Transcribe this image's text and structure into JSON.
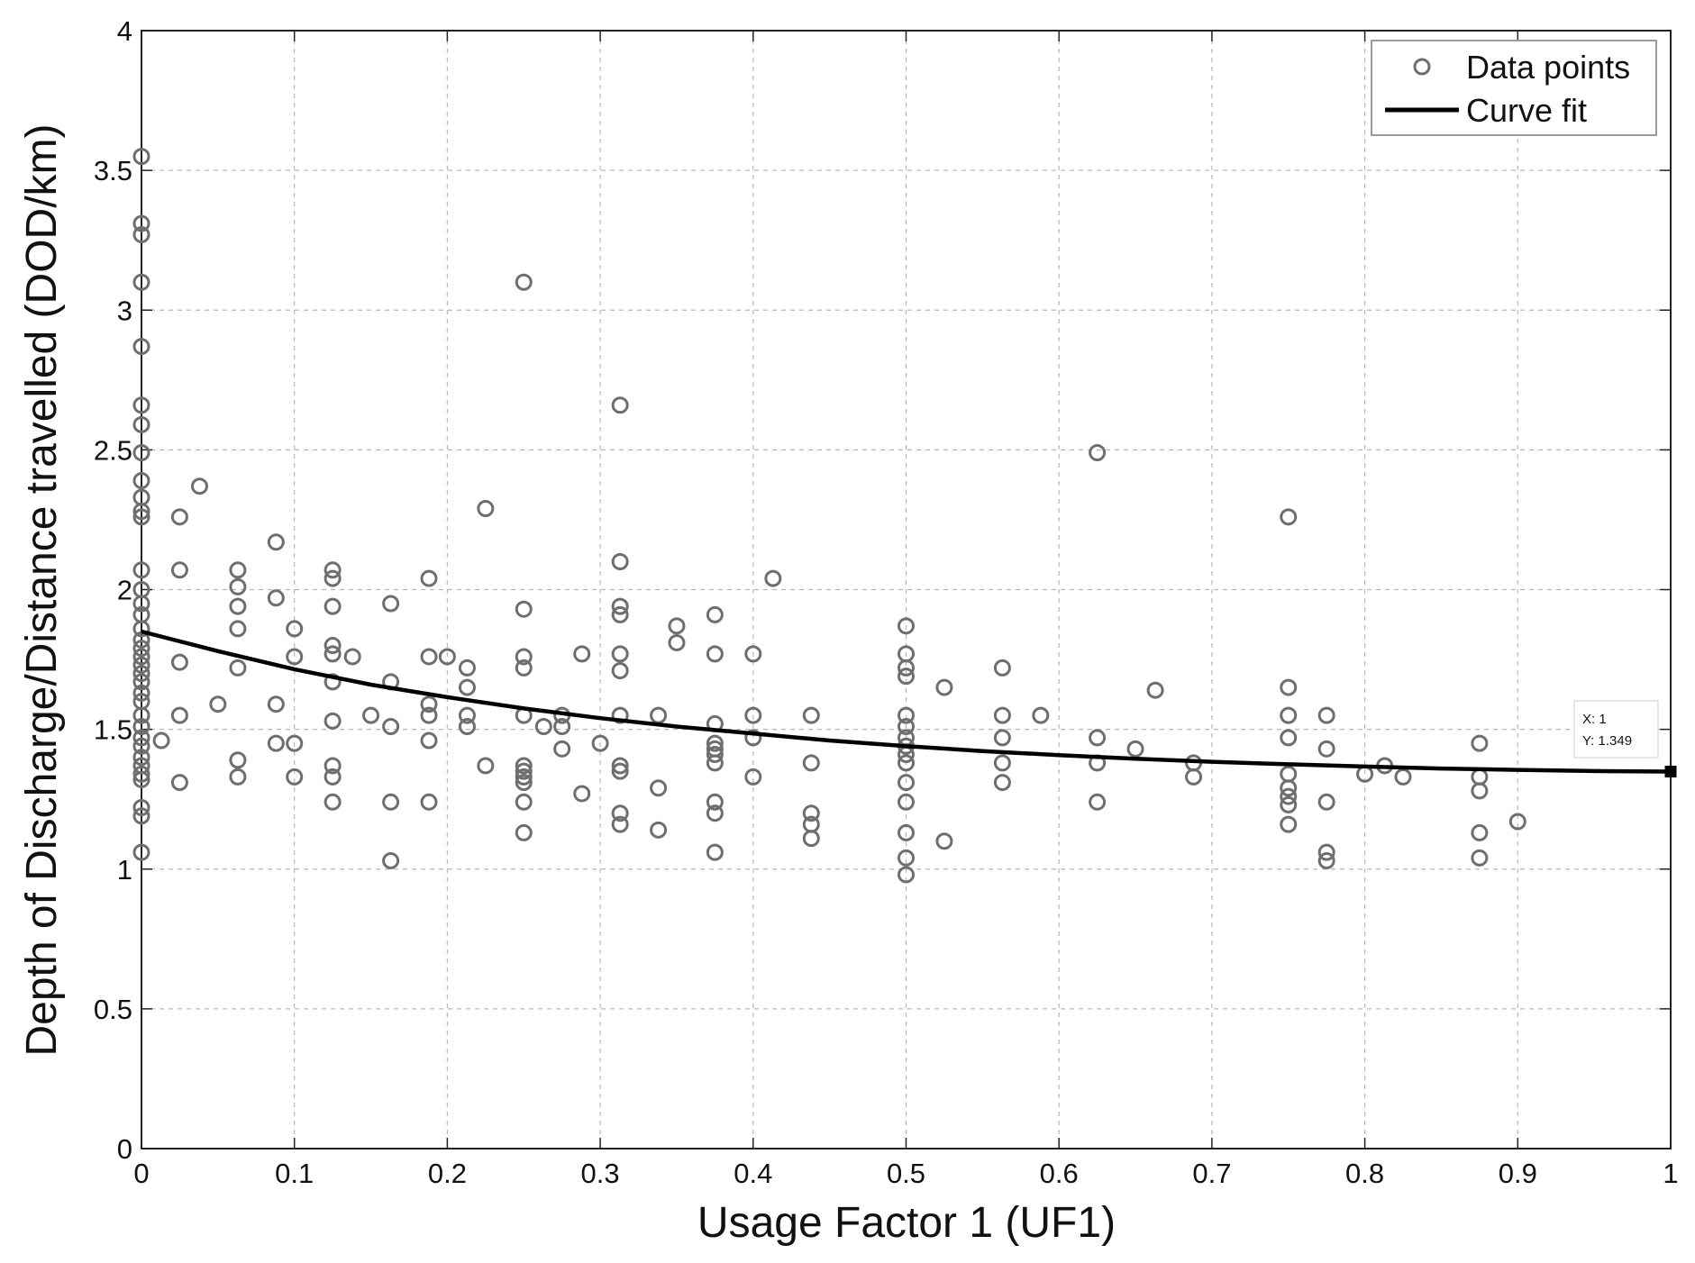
{
  "chart_data": {
    "type": "scatter",
    "title": "",
    "xlabel": "Usage Factor 1 (UF1)",
    "ylabel": "Depth of Discharge/Distance travelled (DOD/km)",
    "xlim": [
      0,
      1
    ],
    "ylim": [
      0,
      4
    ],
    "xticks": [
      0,
      0.1,
      0.2,
      0.3,
      0.4,
      0.5,
      0.6,
      0.7,
      0.8,
      0.9,
      1
    ],
    "xtick_labels": [
      "0",
      "0.1",
      "0.2",
      "0.3",
      "0.4",
      "0.5",
      "0.6",
      "0.7",
      "0.8",
      "0.9",
      "1"
    ],
    "yticks": [
      0,
      0.5,
      1,
      1.5,
      2,
      2.5,
      3,
      3.5,
      4
    ],
    "ytick_labels": [
      "0",
      "0.5",
      "1",
      "1.5",
      "2",
      "2.5",
      "3",
      "3.5",
      "4"
    ],
    "grid": true,
    "legend_position": "top-right",
    "series": [
      {
        "name": "Data points",
        "kind": "scatter",
        "marker": "circle-open",
        "color": "#6e6e6e",
        "points": [
          [
            0,
            3.55
          ],
          [
            0,
            3.31
          ],
          [
            0,
            3.27
          ],
          [
            0,
            3.1
          ],
          [
            0,
            2.87
          ],
          [
            0,
            2.66
          ],
          [
            0,
            2.59
          ],
          [
            0,
            2.49
          ],
          [
            0,
            2.39
          ],
          [
            0,
            2.33
          ],
          [
            0,
            2.28
          ],
          [
            0,
            2.26
          ],
          [
            0,
            2.07
          ],
          [
            0,
            2.0
          ],
          [
            0,
            1.95
          ],
          [
            0,
            1.91
          ],
          [
            0,
            1.86
          ],
          [
            0,
            1.82
          ],
          [
            0,
            1.79
          ],
          [
            0,
            1.76
          ],
          [
            0,
            1.73
          ],
          [
            0,
            1.7
          ],
          [
            0,
            1.67
          ],
          [
            0,
            1.63
          ],
          [
            0,
            1.6
          ],
          [
            0,
            1.55
          ],
          [
            0,
            1.51
          ],
          [
            0,
            1.47
          ],
          [
            0,
            1.44
          ],
          [
            0,
            1.4
          ],
          [
            0,
            1.37
          ],
          [
            0,
            1.34
          ],
          [
            0,
            1.32
          ],
          [
            0,
            1.22
          ],
          [
            0,
            1.19
          ],
          [
            0,
            1.06
          ],
          [
            0.013,
            1.46
          ],
          [
            0.025,
            2.26
          ],
          [
            0.025,
            2.07
          ],
          [
            0.025,
            1.74
          ],
          [
            0.025,
            1.55
          ],
          [
            0.025,
            1.31
          ],
          [
            0.038,
            2.37
          ],
          [
            0.05,
            1.59
          ],
          [
            0.063,
            2.07
          ],
          [
            0.063,
            2.01
          ],
          [
            0.063,
            1.94
          ],
          [
            0.063,
            1.86
          ],
          [
            0.063,
            1.72
          ],
          [
            0.063,
            1.39
          ],
          [
            0.063,
            1.33
          ],
          [
            0.088,
            2.17
          ],
          [
            0.088,
            1.97
          ],
          [
            0.088,
            1.59
          ],
          [
            0.088,
            1.45
          ],
          [
            0.1,
            1.86
          ],
          [
            0.1,
            1.76
          ],
          [
            0.1,
            1.45
          ],
          [
            0.1,
            1.33
          ],
          [
            0.125,
            2.07
          ],
          [
            0.125,
            2.04
          ],
          [
            0.125,
            1.94
          ],
          [
            0.125,
            1.8
          ],
          [
            0.125,
            1.77
          ],
          [
            0.125,
            1.67
          ],
          [
            0.125,
            1.53
          ],
          [
            0.125,
            1.37
          ],
          [
            0.125,
            1.33
          ],
          [
            0.125,
            1.24
          ],
          [
            0.138,
            1.76
          ],
          [
            0.15,
            1.55
          ],
          [
            0.163,
            1.95
          ],
          [
            0.163,
            1.67
          ],
          [
            0.163,
            1.51
          ],
          [
            0.163,
            1.24
          ],
          [
            0.163,
            1.03
          ],
          [
            0.188,
            2.04
          ],
          [
            0.188,
            1.76
          ],
          [
            0.188,
            1.59
          ],
          [
            0.188,
            1.55
          ],
          [
            0.188,
            1.46
          ],
          [
            0.188,
            1.24
          ],
          [
            0.2,
            1.76
          ],
          [
            0.213,
            1.72
          ],
          [
            0.213,
            1.65
          ],
          [
            0.213,
            1.55
          ],
          [
            0.213,
            1.51
          ],
          [
            0.225,
            2.29
          ],
          [
            0.225,
            1.37
          ],
          [
            0.25,
            3.1
          ],
          [
            0.25,
            1.93
          ],
          [
            0.25,
            1.76
          ],
          [
            0.25,
            1.72
          ],
          [
            0.25,
            1.55
          ],
          [
            0.25,
            1.37
          ],
          [
            0.25,
            1.35
          ],
          [
            0.25,
            1.33
          ],
          [
            0.25,
            1.31
          ],
          [
            0.25,
            1.24
          ],
          [
            0.25,
            1.13
          ],
          [
            0.263,
            1.51
          ],
          [
            0.275,
            1.55
          ],
          [
            0.275,
            1.51
          ],
          [
            0.275,
            1.43
          ],
          [
            0.288,
            1.77
          ],
          [
            0.288,
            1.27
          ],
          [
            0.3,
            1.45
          ],
          [
            0.313,
            2.66
          ],
          [
            0.313,
            2.1
          ],
          [
            0.313,
            1.94
          ],
          [
            0.313,
            1.91
          ],
          [
            0.313,
            1.77
          ],
          [
            0.313,
            1.71
          ],
          [
            0.313,
            1.55
          ],
          [
            0.313,
            1.37
          ],
          [
            0.313,
            1.35
          ],
          [
            0.313,
            1.2
          ],
          [
            0.313,
            1.16
          ],
          [
            0.338,
            1.55
          ],
          [
            0.338,
            1.29
          ],
          [
            0.338,
            1.14
          ],
          [
            0.35,
            1.87
          ],
          [
            0.35,
            1.81
          ],
          [
            0.375,
            1.91
          ],
          [
            0.375,
            1.77
          ],
          [
            0.375,
            1.52
          ],
          [
            0.375,
            1.45
          ],
          [
            0.375,
            1.43
          ],
          [
            0.375,
            1.41
          ],
          [
            0.375,
            1.38
          ],
          [
            0.375,
            1.24
          ],
          [
            0.375,
            1.2
          ],
          [
            0.375,
            1.06
          ],
          [
            0.4,
            1.77
          ],
          [
            0.4,
            1.55
          ],
          [
            0.4,
            1.47
          ],
          [
            0.4,
            1.33
          ],
          [
            0.413,
            2.04
          ],
          [
            0.438,
            1.55
          ],
          [
            0.438,
            1.38
          ],
          [
            0.438,
            1.2
          ],
          [
            0.438,
            1.16
          ],
          [
            0.438,
            1.11
          ],
          [
            0.5,
            1.87
          ],
          [
            0.5,
            1.77
          ],
          [
            0.5,
            1.72
          ],
          [
            0.5,
            1.69
          ],
          [
            0.5,
            1.55
          ],
          [
            0.5,
            1.51
          ],
          [
            0.5,
            1.47
          ],
          [
            0.5,
            1.44
          ],
          [
            0.5,
            1.41
          ],
          [
            0.5,
            1.38
          ],
          [
            0.5,
            1.31
          ],
          [
            0.5,
            1.24
          ],
          [
            0.5,
            1.13
          ],
          [
            0.5,
            1.04
          ],
          [
            0.5,
            0.98
          ],
          [
            0.525,
            1.65
          ],
          [
            0.525,
            1.1
          ],
          [
            0.563,
            1.72
          ],
          [
            0.563,
            1.55
          ],
          [
            0.563,
            1.47
          ],
          [
            0.563,
            1.38
          ],
          [
            0.563,
            1.31
          ],
          [
            0.588,
            1.55
          ],
          [
            0.625,
            2.49
          ],
          [
            0.625,
            1.47
          ],
          [
            0.625,
            1.38
          ],
          [
            0.625,
            1.24
          ],
          [
            0.65,
            1.43
          ],
          [
            0.663,
            1.64
          ],
          [
            0.688,
            1.38
          ],
          [
            0.688,
            1.33
          ],
          [
            0.75,
            2.26
          ],
          [
            0.75,
            1.65
          ],
          [
            0.75,
            1.55
          ],
          [
            0.75,
            1.47
          ],
          [
            0.75,
            1.34
          ],
          [
            0.75,
            1.29
          ],
          [
            0.75,
            1.26
          ],
          [
            0.75,
            1.23
          ],
          [
            0.75,
            1.16
          ],
          [
            0.775,
            1.55
          ],
          [
            0.775,
            1.43
          ],
          [
            0.775,
            1.24
          ],
          [
            0.775,
            1.06
          ],
          [
            0.775,
            1.03
          ],
          [
            0.8,
            1.34
          ],
          [
            0.813,
            1.37
          ],
          [
            0.825,
            1.33
          ],
          [
            0.875,
            1.45
          ],
          [
            0.875,
            1.33
          ],
          [
            0.875,
            1.28
          ],
          [
            0.875,
            1.13
          ],
          [
            0.875,
            1.04
          ],
          [
            0.9,
            1.17
          ]
        ]
      },
      {
        "name": "Curve fit",
        "kind": "line",
        "color": "#000000",
        "points": [
          [
            0,
            1.85
          ],
          [
            0.05,
            1.78
          ],
          [
            0.1,
            1.715
          ],
          [
            0.15,
            1.66
          ],
          [
            0.2,
            1.615
          ],
          [
            0.25,
            1.575
          ],
          [
            0.3,
            1.54
          ],
          [
            0.35,
            1.51
          ],
          [
            0.4,
            1.485
          ],
          [
            0.45,
            1.46
          ],
          [
            0.5,
            1.44
          ],
          [
            0.55,
            1.422
          ],
          [
            0.6,
            1.408
          ],
          [
            0.65,
            1.395
          ],
          [
            0.7,
            1.384
          ],
          [
            0.75,
            1.375
          ],
          [
            0.8,
            1.367
          ],
          [
            0.85,
            1.36
          ],
          [
            0.9,
            1.355
          ],
          [
            0.95,
            1.351
          ],
          [
            1,
            1.349
          ]
        ]
      }
    ],
    "datatip": {
      "x": 1,
      "y": 1.349,
      "x_text": "X: 1",
      "y_text": "Y: 1.349"
    }
  }
}
